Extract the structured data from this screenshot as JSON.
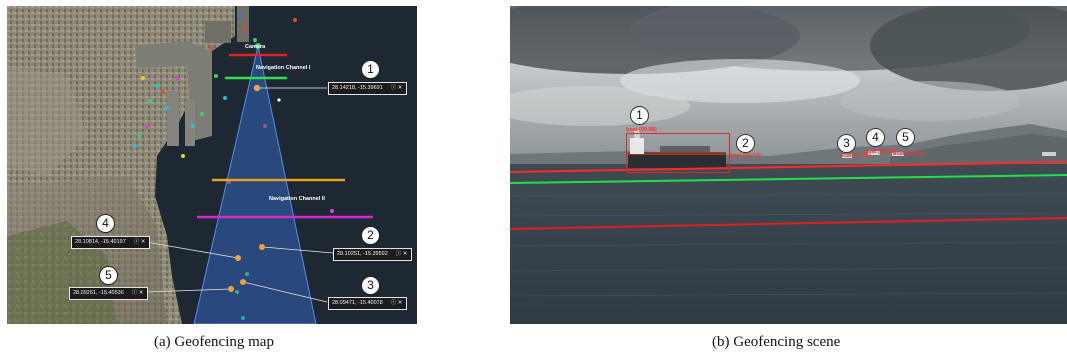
{
  "figure": {
    "panel_a": {
      "caption": "(a) Geofencing map",
      "labels": {
        "camera": "Camera",
        "channel_1": "Navigation Channel I",
        "channel_2": "Navigation Channel II"
      },
      "vessels": [
        {
          "number": "1",
          "coords": "28.14218, -15.39691"
        },
        {
          "number": "2",
          "coords": "28.10251, -15.39592"
        },
        {
          "number": "3",
          "coords": "28.09471, -15.40078"
        },
        {
          "number": "4",
          "coords": "28.10814, -15.40197"
        },
        {
          "number": "5",
          "coords": "28.09261, -15.40536"
        }
      ],
      "popup_icons": "ⓘ ✕",
      "colors": {
        "channel_1_line": "#2ee04a",
        "camera_line": "#e02222",
        "orange_line": "#e6a21a",
        "magenta_line": "#d42bd0",
        "fov": "#3a6fd8"
      }
    },
    "panel_b": {
      "caption": "(b) Geofencing scene",
      "detections": [
        {
          "number": "1",
          "label": "boat [99.88]"
        },
        {
          "number": "2",
          "label": "boat [97.73]"
        },
        {
          "number": "3",
          "label": "boat [97.36]"
        },
        {
          "number": "4",
          "label": "boat [98.33]"
        },
        {
          "number": "5",
          "label": "boat [91.44]"
        }
      ],
      "colors": {
        "red_line": "#ff2a2a",
        "green_line": "#22e04a"
      }
    }
  }
}
